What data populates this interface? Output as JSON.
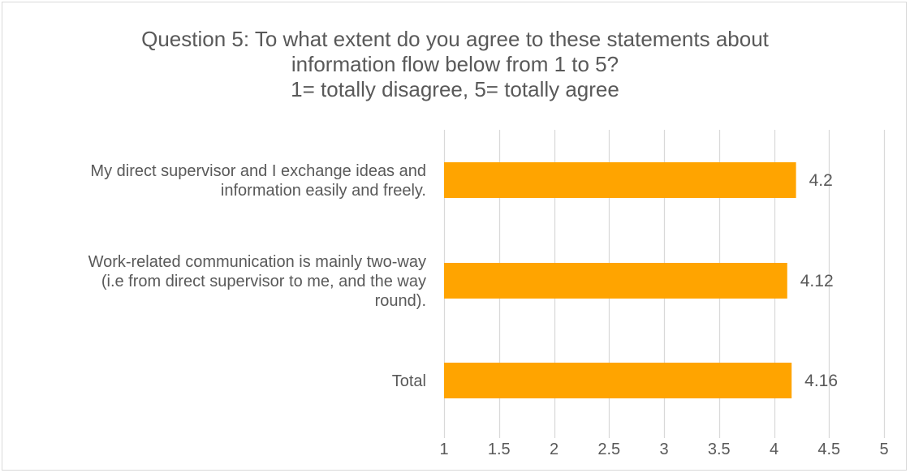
{
  "chart_data": {
    "type": "bar",
    "orientation": "horizontal",
    "title_lines": [
      "Question 5: To what extent do you agree to these statements about",
      "information flow below from 1 to 5?",
      "1= totally disagree, 5= totally agree"
    ],
    "categories": [
      [
        "My direct supervisor and I exchange ideas and",
        "information easily and freely."
      ],
      [
        "Work-related communication is mainly two-way",
        "(i.e from direct supervisor to me, and the way",
        "round)."
      ],
      [
        "Total"
      ]
    ],
    "values": [
      4.2,
      4.12,
      4.16
    ],
    "data_labels": [
      "4.2",
      "4.12",
      "4.16"
    ],
    "xlim": [
      1,
      5
    ],
    "x_ticks": [
      "1",
      "1.5",
      "2",
      "2.5",
      "3",
      "3.5",
      "4",
      "4.5",
      "5"
    ],
    "x_tick_values": [
      1,
      1.5,
      2,
      2.5,
      3,
      3.5,
      4,
      4.5,
      5
    ],
    "grid": "vertical gridlines",
    "legend": "none",
    "colors": {
      "bar": "#ffa400",
      "grid": "#d9d9d9",
      "text": "#595959",
      "border": "#d9d9d9"
    }
  }
}
